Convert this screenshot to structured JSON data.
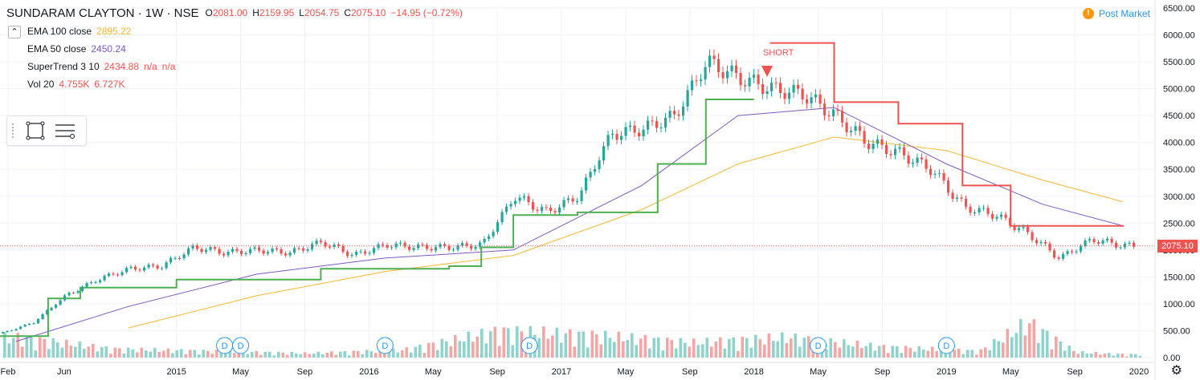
{
  "header": {
    "title": "SUNDARAM CLAYTON · 1W · NSE",
    "ohlc": [
      {
        "label": "O",
        "value": "2081.00"
      },
      {
        "label": "H",
        "value": "2159.95"
      },
      {
        "label": "L",
        "value": "2054.75"
      },
      {
        "label": "C",
        "value": "2075.10"
      },
      {
        "label": "",
        "value": "−14.95 (−0.72%)"
      }
    ],
    "collapse_icon": "chevron-up-icon"
  },
  "indicators": [
    {
      "name": "EMA 100 close",
      "values": [
        "2895.22"
      ],
      "color": "#f5b731"
    },
    {
      "name": "EMA 50 close",
      "values": [
        "2450.24"
      ],
      "color": "#7e57c2"
    },
    {
      "name": "SuperTrend 3 10",
      "values": [
        "2434.88",
        "n/a",
        "n/a"
      ],
      "color": "#ef5350"
    },
    {
      "name": "Vol 20",
      "values": [
        "4.755K",
        "6.727K"
      ],
      "color": "#ef5350"
    }
  ],
  "status": {
    "icon": "!",
    "label": "Post Market"
  },
  "last_price": "2075.10",
  "signal_label": "SHORT",
  "colors": {
    "up": "#26a69a",
    "down": "#ef5350",
    "ema100": "#f5b731",
    "ema50": "#7e57c2",
    "supertrend_up": "#4caf50",
    "supertrend_down": "#ef5350",
    "vol_up": "#8fd3cc",
    "vol_down": "#f4a6a4",
    "grid": "#f0f3fa",
    "axis_text": "#131722",
    "dividend": "#2196f3"
  },
  "chart_data": {
    "type": "line",
    "y_ticks": [
      "6500.00",
      "6000.00",
      "5500.00",
      "5000.00",
      "4500.00",
      "4000.00",
      "3500.00",
      "3000.00",
      "2500.00",
      "2000.00",
      "1500.00",
      "1000.00",
      "500.00",
      "0.00"
    ],
    "x_ticks": [
      "Feb",
      "Jun",
      "2015",
      "May",
      "Sep",
      "2016",
      "May",
      "Sep",
      "2017",
      "May",
      "Sep",
      "2018",
      "May",
      "Sep",
      "2019",
      "May",
      "Sep",
      "2020"
    ],
    "price_ylim": [
      0,
      6500
    ],
    "dividend_marker": "D",
    "close_series": {
      "name": "",
      "x": [
        "2014-02",
        "2014-04",
        "2014-06",
        "2014-08",
        "2014-10",
        "2014-12",
        "2015-02",
        "2015-04",
        "2015-06",
        "2015-08",
        "2015-10",
        "2015-12",
        "2016-02",
        "2016-04",
        "2016-06",
        "2016-08",
        "2016-10",
        "2016-12",
        "2017-02",
        "2017-04",
        "2017-06",
        "2017-08",
        "2017-10",
        "2017-12",
        "2018-02",
        "2018-04",
        "2018-06",
        "2018-08",
        "2018-10",
        "2018-12",
        "2019-02",
        "2019-04",
        "2019-06",
        "2019-08",
        "2019-10",
        "2019-12"
      ],
      "values": [
        450,
        650,
        1150,
        1450,
        1650,
        1700,
        2050,
        1950,
        2000,
        1950,
        2150,
        1900,
        2100,
        2050,
        2050,
        2100,
        3000,
        2700,
        3000,
        4150,
        4250,
        4500,
        5500,
        5200,
        5000,
        4900,
        4500,
        4000,
        3800,
        3500,
        2800,
        2650,
        2300,
        1850,
        2200,
        2075
      ]
    },
    "ema100_series": {
      "name": "EMA 100 close",
      "x": [
        "2014-10",
        "2015-06",
        "2016-02",
        "2016-10",
        "2017-06",
        "2017-12",
        "2018-06",
        "2019-01",
        "2019-07",
        "2019-12"
      ],
      "values": [
        550,
        1150,
        1600,
        1900,
        2750,
        3600,
        4100,
        3850,
        3300,
        2895
      ]
    },
    "ema50_series": {
      "name": "EMA 50 close",
      "x": [
        "2014-03",
        "2014-10",
        "2015-06",
        "2016-02",
        "2016-10",
        "2017-06",
        "2017-12",
        "2018-06",
        "2019-01",
        "2019-07",
        "2019-12"
      ],
      "values": [
        300,
        950,
        1550,
        1850,
        2000,
        3200,
        4500,
        4650,
        3600,
        2850,
        2450
      ]
    },
    "supertrend_series": {
      "name": "SuperTrend 3 10",
      "x": [
        "2014-02",
        "2014-05",
        "2014-07",
        "2015-01",
        "2015-04",
        "2015-10",
        "2016-06",
        "2016-08",
        "2016-10",
        "2017-02",
        "2017-07",
        "2017-10",
        "2018-01",
        "2018-02",
        "2018-06",
        "2018-10",
        "2019-02",
        "2019-05",
        "2019-12"
      ],
      "values": [
        400,
        1100,
        1300,
        1450,
        1450,
        1650,
        1700,
        2050,
        2650,
        2700,
        3600,
        4800,
        4800,
        5850,
        4750,
        4350,
        3200,
        2450,
        2435
      ]
    },
    "volume": {
      "name": "Vol 20",
      "x": [
        "2014-03",
        "2014-09",
        "2015-03",
        "2015-09",
        "2016-03",
        "2016-09",
        "2017-03",
        "2017-09",
        "2018-03",
        "2018-09",
        "2019-03",
        "2019-06",
        "2019-09",
        "2019-12"
      ],
      "values": [
        950,
        400,
        300,
        200,
        350,
        1250,
        1050,
        700,
        950,
        500,
        300,
        1650,
        250,
        150
      ]
    }
  }
}
